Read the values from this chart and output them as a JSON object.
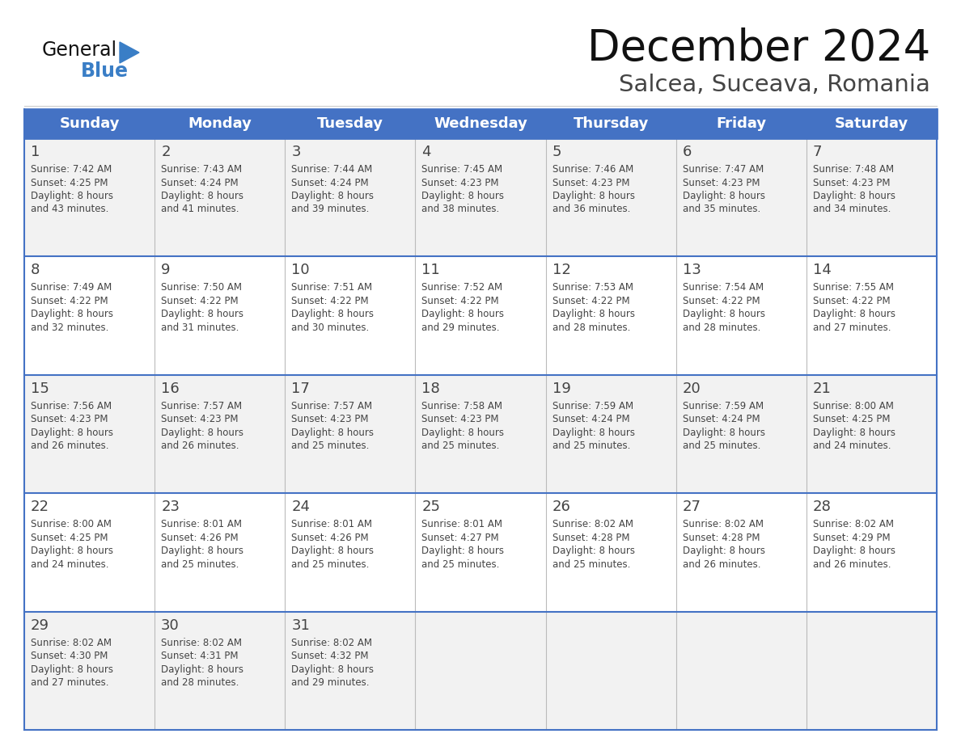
{
  "title": "December 2024",
  "subtitle": "Salcea, Suceava, Romania",
  "header_bg_color": "#4472C4",
  "header_text_color": "#FFFFFF",
  "row_bg_colors": [
    "#F2F2F2",
    "#FFFFFF"
  ],
  "border_color": "#4472C4",
  "cell_border_color": "#4472C4",
  "text_color": "#444444",
  "day_headers": [
    "Sunday",
    "Monday",
    "Tuesday",
    "Wednesday",
    "Thursday",
    "Friday",
    "Saturday"
  ],
  "weeks": [
    {
      "days": [
        {
          "date": "1",
          "sunrise": "7:42 AM",
          "sunset": "4:25 PM",
          "dl1": "Daylight: 8 hours",
          "dl2": "and 43 minutes."
        },
        {
          "date": "2",
          "sunrise": "7:43 AM",
          "sunset": "4:24 PM",
          "dl1": "Daylight: 8 hours",
          "dl2": "and 41 minutes."
        },
        {
          "date": "3",
          "sunrise": "7:44 AM",
          "sunset": "4:24 PM",
          "dl1": "Daylight: 8 hours",
          "dl2": "and 39 minutes."
        },
        {
          "date": "4",
          "sunrise": "7:45 AM",
          "sunset": "4:23 PM",
          "dl1": "Daylight: 8 hours",
          "dl2": "and 38 minutes."
        },
        {
          "date": "5",
          "sunrise": "7:46 AM",
          "sunset": "4:23 PM",
          "dl1": "Daylight: 8 hours",
          "dl2": "and 36 minutes."
        },
        {
          "date": "6",
          "sunrise": "7:47 AM",
          "sunset": "4:23 PM",
          "dl1": "Daylight: 8 hours",
          "dl2": "and 35 minutes."
        },
        {
          "date": "7",
          "sunrise": "7:48 AM",
          "sunset": "4:23 PM",
          "dl1": "Daylight: 8 hours",
          "dl2": "and 34 minutes."
        }
      ]
    },
    {
      "days": [
        {
          "date": "8",
          "sunrise": "7:49 AM",
          "sunset": "4:22 PM",
          "dl1": "Daylight: 8 hours",
          "dl2": "and 32 minutes."
        },
        {
          "date": "9",
          "sunrise": "7:50 AM",
          "sunset": "4:22 PM",
          "dl1": "Daylight: 8 hours",
          "dl2": "and 31 minutes."
        },
        {
          "date": "10",
          "sunrise": "7:51 AM",
          "sunset": "4:22 PM",
          "dl1": "Daylight: 8 hours",
          "dl2": "and 30 minutes."
        },
        {
          "date": "11",
          "sunrise": "7:52 AM",
          "sunset": "4:22 PM",
          "dl1": "Daylight: 8 hours",
          "dl2": "and 29 minutes."
        },
        {
          "date": "12",
          "sunrise": "7:53 AM",
          "sunset": "4:22 PM",
          "dl1": "Daylight: 8 hours",
          "dl2": "and 28 minutes."
        },
        {
          "date": "13",
          "sunrise": "7:54 AM",
          "sunset": "4:22 PM",
          "dl1": "Daylight: 8 hours",
          "dl2": "and 28 minutes."
        },
        {
          "date": "14",
          "sunrise": "7:55 AM",
          "sunset": "4:22 PM",
          "dl1": "Daylight: 8 hours",
          "dl2": "and 27 minutes."
        }
      ]
    },
    {
      "days": [
        {
          "date": "15",
          "sunrise": "7:56 AM",
          "sunset": "4:23 PM",
          "dl1": "Daylight: 8 hours",
          "dl2": "and 26 minutes."
        },
        {
          "date": "16",
          "sunrise": "7:57 AM",
          "sunset": "4:23 PM",
          "dl1": "Daylight: 8 hours",
          "dl2": "and 26 minutes."
        },
        {
          "date": "17",
          "sunrise": "7:57 AM",
          "sunset": "4:23 PM",
          "dl1": "Daylight: 8 hours",
          "dl2": "and 25 minutes."
        },
        {
          "date": "18",
          "sunrise": "7:58 AM",
          "sunset": "4:23 PM",
          "dl1": "Daylight: 8 hours",
          "dl2": "and 25 minutes."
        },
        {
          "date": "19",
          "sunrise": "7:59 AM",
          "sunset": "4:24 PM",
          "dl1": "Daylight: 8 hours",
          "dl2": "and 25 minutes."
        },
        {
          "date": "20",
          "sunrise": "7:59 AM",
          "sunset": "4:24 PM",
          "dl1": "Daylight: 8 hours",
          "dl2": "and 25 minutes."
        },
        {
          "date": "21",
          "sunrise": "8:00 AM",
          "sunset": "4:25 PM",
          "dl1": "Daylight: 8 hours",
          "dl2": "and 24 minutes."
        }
      ]
    },
    {
      "days": [
        {
          "date": "22",
          "sunrise": "8:00 AM",
          "sunset": "4:25 PM",
          "dl1": "Daylight: 8 hours",
          "dl2": "and 24 minutes."
        },
        {
          "date": "23",
          "sunrise": "8:01 AM",
          "sunset": "4:26 PM",
          "dl1": "Daylight: 8 hours",
          "dl2": "and 25 minutes."
        },
        {
          "date": "24",
          "sunrise": "8:01 AM",
          "sunset": "4:26 PM",
          "dl1": "Daylight: 8 hours",
          "dl2": "and 25 minutes."
        },
        {
          "date": "25",
          "sunrise": "8:01 AM",
          "sunset": "4:27 PM",
          "dl1": "Daylight: 8 hours",
          "dl2": "and 25 minutes."
        },
        {
          "date": "26",
          "sunrise": "8:02 AM",
          "sunset": "4:28 PM",
          "dl1": "Daylight: 8 hours",
          "dl2": "and 25 minutes."
        },
        {
          "date": "27",
          "sunrise": "8:02 AM",
          "sunset": "4:28 PM",
          "dl1": "Daylight: 8 hours",
          "dl2": "and 26 minutes."
        },
        {
          "date": "28",
          "sunrise": "8:02 AM",
          "sunset": "4:29 PM",
          "dl1": "Daylight: 8 hours",
          "dl2": "and 26 minutes."
        }
      ]
    },
    {
      "days": [
        {
          "date": "29",
          "sunrise": "8:02 AM",
          "sunset": "4:30 PM",
          "dl1": "Daylight: 8 hours",
          "dl2": "and 27 minutes."
        },
        {
          "date": "30",
          "sunrise": "8:02 AM",
          "sunset": "4:31 PM",
          "dl1": "Daylight: 8 hours",
          "dl2": "and 28 minutes."
        },
        {
          "date": "31",
          "sunrise": "8:02 AM",
          "sunset": "4:32 PM",
          "dl1": "Daylight: 8 hours",
          "dl2": "and 29 minutes."
        },
        {
          "date": "",
          "sunrise": "",
          "sunset": "",
          "dl1": "",
          "dl2": ""
        },
        {
          "date": "",
          "sunrise": "",
          "sunset": "",
          "dl1": "",
          "dl2": ""
        },
        {
          "date": "",
          "sunrise": "",
          "sunset": "",
          "dl1": "",
          "dl2": ""
        },
        {
          "date": "",
          "sunrise": "",
          "sunset": "",
          "dl1": "",
          "dl2": ""
        }
      ]
    }
  ],
  "logo_general_color": "#111111",
  "logo_blue_color": "#3A7EC6",
  "title_fontsize": 38,
  "subtitle_fontsize": 21,
  "cell_text_fontsize": 8.5,
  "date_fontsize": 13,
  "header_fontsize": 13
}
